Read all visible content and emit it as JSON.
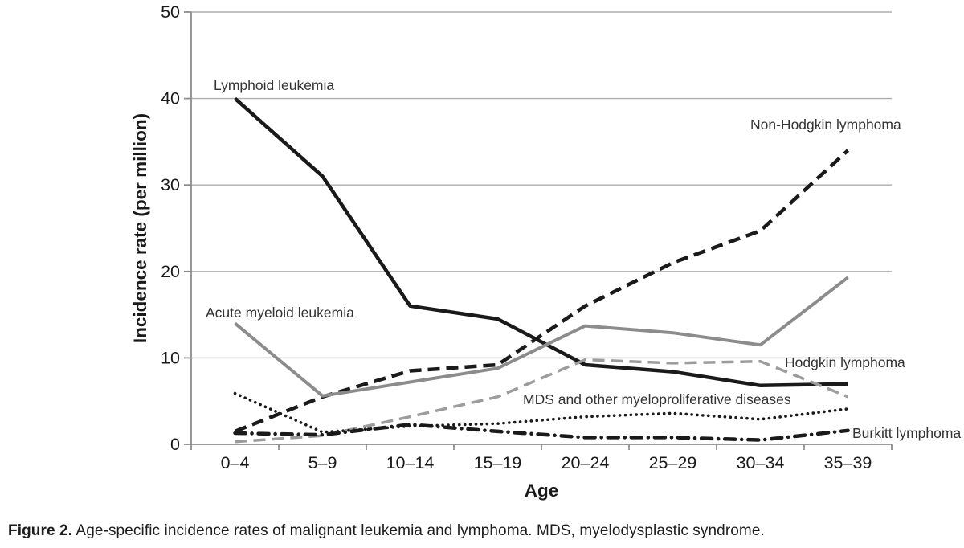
{
  "figure": {
    "caption_prefix": "Figure 2.",
    "caption_text": " Age-specific incidence rates of malignant leukemia and lymphoma. MDS, myelodysplastic syndrome."
  },
  "chart_data": {
    "type": "line",
    "title": "",
    "xlabel": "Age",
    "ylabel": "Incidence rate (per million)",
    "ylim": [
      0,
      50
    ],
    "yticks": [
      0,
      10,
      20,
      30,
      40,
      50
    ],
    "grid": "horizontal-gridlines-on",
    "legend": "inline-labels-next-to-lines",
    "categories": [
      "0–4",
      "5–9",
      "10–14",
      "15–19",
      "20–24",
      "25–29",
      "30–34",
      "35–39"
    ],
    "series": [
      {
        "name": "Lymphoid leukemia",
        "style": "solid",
        "color": "#1a1a1a",
        "values": [
          40,
          31,
          16,
          14.5,
          9.2,
          8.4,
          6.8,
          7.0
        ]
      },
      {
        "name": "Non-Hodgkin lymphoma",
        "style": "dashed",
        "color": "#1a1a1a",
        "values": [
          1.5,
          5.5,
          8.5,
          9.2,
          16,
          21,
          24.7,
          34
        ]
      },
      {
        "name": "Acute myeloid leukemia",
        "style": "solid",
        "color": "#8c8c8c",
        "values": [
          14,
          5.6,
          7.2,
          8.8,
          13.7,
          12.9,
          11.5,
          19.3
        ]
      },
      {
        "name": "Hodgkin lymphoma",
        "style": "dashed",
        "color": "#9c9c9c",
        "values": [
          0.3,
          1.0,
          3.2,
          5.5,
          9.8,
          9.4,
          9.6,
          5.5
        ]
      },
      {
        "name": "MDS and other myeloproliferative diseases",
        "style": "dotted",
        "color": "#1a1a1a",
        "values": [
          5.9,
          1.4,
          2.1,
          2.4,
          3.2,
          3.6,
          2.9,
          4.1
        ]
      },
      {
        "name": "Burkitt lymphoma",
        "style": "dashdot",
        "color": "#1a1a1a",
        "values": [
          1.3,
          1.1,
          2.3,
          1.5,
          0.8,
          0.8,
          0.5,
          1.6
        ]
      }
    ]
  },
  "colors": {
    "axis": "#8c8c8c",
    "gridline": "#aeaeae",
    "tick_label": "#1a1a1a",
    "series_label": "#333333"
  }
}
